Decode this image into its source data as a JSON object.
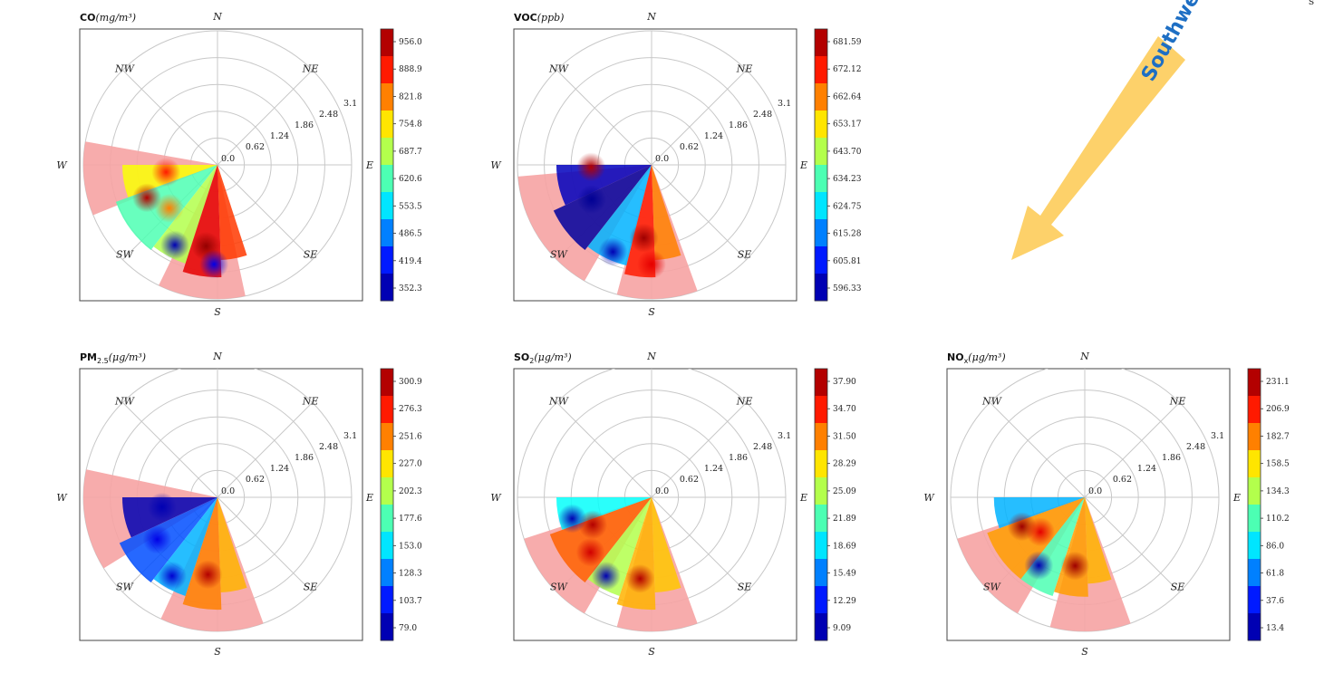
{
  "page_mark": "s",
  "annotation": {
    "text": "Southwest direction",
    "arrow_color": "#fdd16a",
    "text_color": "#1e6fc4"
  },
  "directions": [
    "N",
    "NE",
    "E",
    "SE",
    "S",
    "SW",
    "W",
    "NW"
  ],
  "radial_ticks": [
    "0.0",
    "0.62",
    "1.24",
    "1.86",
    "2.48",
    "3.1"
  ],
  "chart_data": [
    {
      "type": "heatmap",
      "subtype": "polar",
      "title": "CO (mg/m³)",
      "title_prefix": "CO",
      "title_unit": "(mg/m³)",
      "r_ticks": [
        0.0,
        0.62,
        1.24,
        1.86,
        2.48,
        3.1
      ],
      "rlim": [
        0,
        3.1
      ],
      "colorbar_ticks": [
        "956.0",
        "888.9",
        "821.8",
        "754.8",
        "687.7",
        "620.6",
        "553.5",
        "486.5",
        "419.4",
        "352.3"
      ],
      "range": [
        352.3,
        956.0
      ],
      "highlight_sectors_deg": [
        [
          170,
          202
        ],
        [
          244,
          282
        ]
      ],
      "sectors": [
        {
          "a0": 180,
          "a1": 200,
          "r": 2.2,
          "v": 0.62
        },
        {
          "a0": 200,
          "a1": 232,
          "r": 2.5,
          "v": 0.45
        },
        {
          "a0": 232,
          "a1": 252,
          "r": 2.4,
          "v": 0.55
        },
        {
          "a0": 252,
          "a1": 272,
          "r": 2.6,
          "v": 0.9
        },
        {
          "a0": 272,
          "a1": 288,
          "r": 2.2,
          "v": 0.82
        }
      ],
      "hotspots": [
        {
          "a": 188,
          "r": 1.2,
          "v": 0.85
        },
        {
          "a": 205,
          "r": 1.8,
          "v": 0.95
        },
        {
          "a": 262,
          "r": 1.9,
          "v": 0.98
        },
        {
          "a": 268,
          "r": 2.3,
          "v": 0.1
        },
        {
          "a": 242,
          "r": 2.1,
          "v": 0.05
        },
        {
          "a": 222,
          "r": 1.5,
          "v": 0.75
        }
      ]
    },
    {
      "type": "heatmap",
      "subtype": "polar",
      "title": "VOC (ppb)",
      "title_prefix": "VOC",
      "title_unit": "(ppb)",
      "r_ticks": [
        0.0,
        0.62,
        1.24,
        1.86,
        2.48,
        3.1
      ],
      "rlim": [
        0,
        3.1
      ],
      "colorbar_ticks": [
        "681.59",
        "672.12",
        "662.64",
        "653.17",
        "643.70",
        "634.23",
        "624.75",
        "615.28",
        "605.81",
        "596.33"
      ],
      "range": [
        596.33,
        681.59
      ],
      "highlight_sectors_deg": [
        [
          185,
          240
        ],
        [
          255,
          290
        ]
      ],
      "sectors": [
        {
          "a0": 180,
          "a1": 205,
          "r": 2.2,
          "v": 0.06
        },
        {
          "a0": 205,
          "a1": 232,
          "r": 2.5,
          "v": 0.03
        },
        {
          "a0": 232,
          "a1": 256,
          "r": 2.4,
          "v": 0.3
        },
        {
          "a0": 256,
          "a1": 272,
          "r": 2.6,
          "v": 0.85
        },
        {
          "a0": 272,
          "a1": 288,
          "r": 2.2,
          "v": 0.75
        }
      ],
      "hotspots": [
        {
          "a": 182,
          "r": 1.4,
          "v": 0.95
        },
        {
          "a": 264,
          "r": 1.7,
          "v": 0.97
        },
        {
          "a": 270,
          "r": 2.3,
          "v": 0.9
        },
        {
          "a": 246,
          "r": 2.2,
          "v": 0.05
        },
        {
          "a": 210,
          "r": 1.6,
          "v": 0.02
        }
      ]
    },
    {
      "type": "heatmap",
      "subtype": "polar",
      "title": "PM2.5 (μg/m³)",
      "title_prefix": "PM",
      "title_sub": "2.5",
      "title_unit": "(μg/m³)",
      "r_ticks": [
        0.0,
        0.62,
        1.24,
        1.86,
        2.48,
        3.1
      ],
      "rlim": [
        0,
        3.1
      ],
      "colorbar_ticks": [
        "300.9",
        "276.3",
        "251.6",
        "227.0",
        "202.3",
        "177.6",
        "153.0",
        "128.3",
        "103.7",
        "79.0"
      ],
      "range": [
        79.0,
        300.9
      ],
      "highlight_sectors_deg": [
        [
          168,
          212
        ],
        [
          245,
          290
        ]
      ],
      "sectors": [
        {
          "a0": 180,
          "a1": 205,
          "r": 2.2,
          "v": 0.05
        },
        {
          "a0": 205,
          "a1": 232,
          "r": 2.5,
          "v": 0.2
        },
        {
          "a0": 232,
          "a1": 252,
          "r": 2.4,
          "v": 0.3
        },
        {
          "a0": 252,
          "a1": 272,
          "r": 2.6,
          "v": 0.75
        },
        {
          "a0": 272,
          "a1": 288,
          "r": 2.2,
          "v": 0.7
        }
      ],
      "hotspots": [
        {
          "a": 190,
          "r": 1.3,
          "v": 0.05
        },
        {
          "a": 263,
          "r": 1.8,
          "v": 0.95
        },
        {
          "a": 240,
          "r": 2.1,
          "v": 0.08
        },
        {
          "a": 215,
          "r": 1.7,
          "v": 0.1
        }
      ]
    },
    {
      "type": "heatmap",
      "subtype": "polar",
      "title": "SO2 (μg/m³)",
      "title_prefix": "SO",
      "title_sub": "2",
      "title_unit": "(μg/m³)",
      "r_ticks": [
        0.0,
        0.62,
        1.24,
        1.86,
        2.48,
        3.1
      ],
      "rlim": [
        0,
        3.1
      ],
      "colorbar_ticks": [
        "37.90",
        "34.70",
        "31.50",
        "28.29",
        "25.09",
        "21.89",
        "18.69",
        "15.49",
        "12.29",
        "9.09"
      ],
      "range": [
        9.09,
        37.9
      ],
      "highlight_sectors_deg": [
        [
          198,
          240
        ],
        [
          255,
          290
        ]
      ],
      "sectors": [
        {
          "a0": 180,
          "a1": 200,
          "r": 2.2,
          "v": 0.38
        },
        {
          "a0": 200,
          "a1": 232,
          "r": 2.5,
          "v": 0.78
        },
        {
          "a0": 232,
          "a1": 252,
          "r": 2.4,
          "v": 0.55
        },
        {
          "a0": 252,
          "a1": 272,
          "r": 2.6,
          "v": 0.7
        },
        {
          "a0": 272,
          "a1": 288,
          "r": 2.2,
          "v": 0.68
        }
      ],
      "hotspots": [
        {
          "a": 205,
          "r": 1.5,
          "v": 0.95
        },
        {
          "a": 222,
          "r": 1.9,
          "v": 0.92
        },
        {
          "a": 262,
          "r": 1.9,
          "v": 0.95
        },
        {
          "a": 240,
          "r": 2.1,
          "v": 0.05
        },
        {
          "a": 195,
          "r": 1.9,
          "v": 0.05
        }
      ]
    },
    {
      "type": "heatmap",
      "subtype": "polar",
      "title": "NOx (μg/m³)",
      "title_prefix": "NO",
      "title_sub": "x",
      "title_unit": "(μg/m³)",
      "r_ticks": [
        0.0,
        0.62,
        1.24,
        1.86,
        2.48,
        3.1
      ],
      "rlim": [
        0,
        3.1
      ],
      "colorbar_ticks": [
        "231.1",
        "206.9",
        "182.7",
        "158.5",
        "134.3",
        "110.2",
        "86.0",
        "61.8",
        "37.6",
        "13.4"
      ],
      "range": [
        13.4,
        231.1
      ],
      "highlight_sectors_deg": [
        [
          198,
          240
        ],
        [
          255,
          290
        ]
      ],
      "sectors": [
        {
          "a0": 180,
          "a1": 200,
          "r": 2.1,
          "v": 0.3
        },
        {
          "a0": 200,
          "a1": 232,
          "r": 2.4,
          "v": 0.72
        },
        {
          "a0": 232,
          "a1": 252,
          "r": 2.4,
          "v": 0.45
        },
        {
          "a0": 252,
          "a1": 272,
          "r": 2.3,
          "v": 0.72
        },
        {
          "a0": 272,
          "a1": 288,
          "r": 2.0,
          "v": 0.7
        }
      ],
      "hotspots": [
        {
          "a": 205,
          "r": 1.6,
          "v": 0.97
        },
        {
          "a": 262,
          "r": 1.6,
          "v": 0.97
        },
        {
          "a": 236,
          "r": 1.9,
          "v": 0.05
        },
        {
          "a": 218,
          "r": 1.3,
          "v": 0.9
        }
      ]
    }
  ]
}
